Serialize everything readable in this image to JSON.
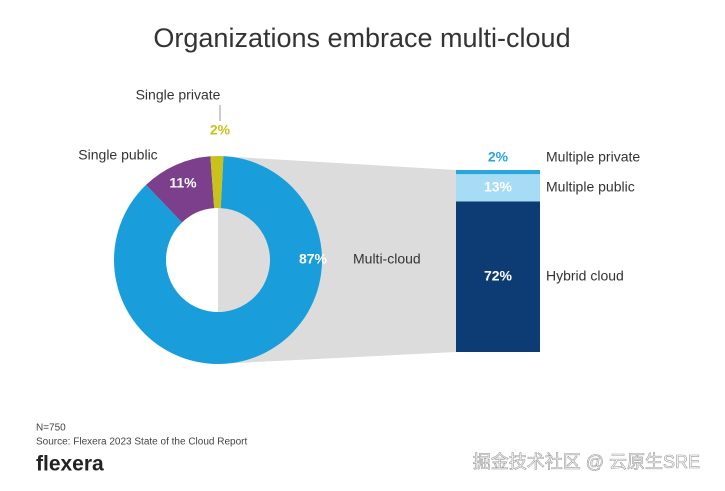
{
  "title": "Organizations embrace multi-cloud",
  "note": "N=750",
  "source": "Source: Flexera 2023 State of the Cloud Report",
  "logo": "flexera",
  "watermark": "掘金技术社区 @ 云原生SRE",
  "chart_data": [
    {
      "type": "donut",
      "categories": [
        "Multi-cloud",
        "Single public",
        "Single private"
      ],
      "values": [
        87,
        11,
        2
      ],
      "value_labels": [
        "87%",
        "11%",
        "2%"
      ],
      "colors": [
        "#1a9ddb",
        "#7b3f8c",
        "#c9c21c"
      ]
    },
    {
      "type": "stacked-bar",
      "categories": [
        "Hybrid cloud",
        "Multiple public",
        "Multiple private"
      ],
      "values": [
        72,
        13,
        2
      ],
      "value_labels": [
        "72%",
        "13%",
        "2%"
      ],
      "colors": [
        "#0d3c74",
        "#a6dcf5",
        "#2aa6dc"
      ]
    }
  ]
}
